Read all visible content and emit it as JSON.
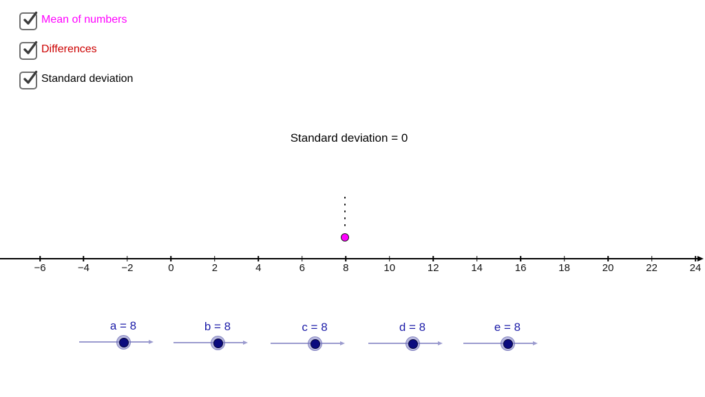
{
  "checkboxes": [
    {
      "label": "Mean of numbers",
      "checked": true,
      "color": "#ff00ff"
    },
    {
      "label": "Differences",
      "checked": true,
      "color": "#cc0000"
    },
    {
      "label": "Standard deviation",
      "checked": true,
      "color": "#000000"
    }
  ],
  "status_text": "Standard deviation = 0",
  "axis": {
    "min": -6,
    "max": 24,
    "step": 2,
    "tick_labels": [
      "−6",
      "−4",
      "−2",
      "0",
      "2",
      "4",
      "6",
      "8",
      "10",
      "12",
      "14",
      "16",
      "18",
      "20",
      "22",
      "24"
    ]
  },
  "mean_point": {
    "x": 8,
    "color": "#ff00ff"
  },
  "sliders": [
    {
      "name": "a",
      "value": 8,
      "label": "a = 8"
    },
    {
      "name": "b",
      "value": 8,
      "label": "b = 8"
    },
    {
      "name": "c",
      "value": 8,
      "label": "c = 8"
    },
    {
      "name": "d",
      "value": 8,
      "label": "d = 8"
    },
    {
      "name": "e",
      "value": 8,
      "label": "e = 8"
    }
  ],
  "colors": {
    "mean_label": "#ff00ff",
    "differences_label": "#cc0000",
    "slider_text": "#1c1ca8",
    "slider_track": "#9a9ace",
    "slider_handle": "#0b0b7e",
    "point_fill": "#ff00ff"
  }
}
